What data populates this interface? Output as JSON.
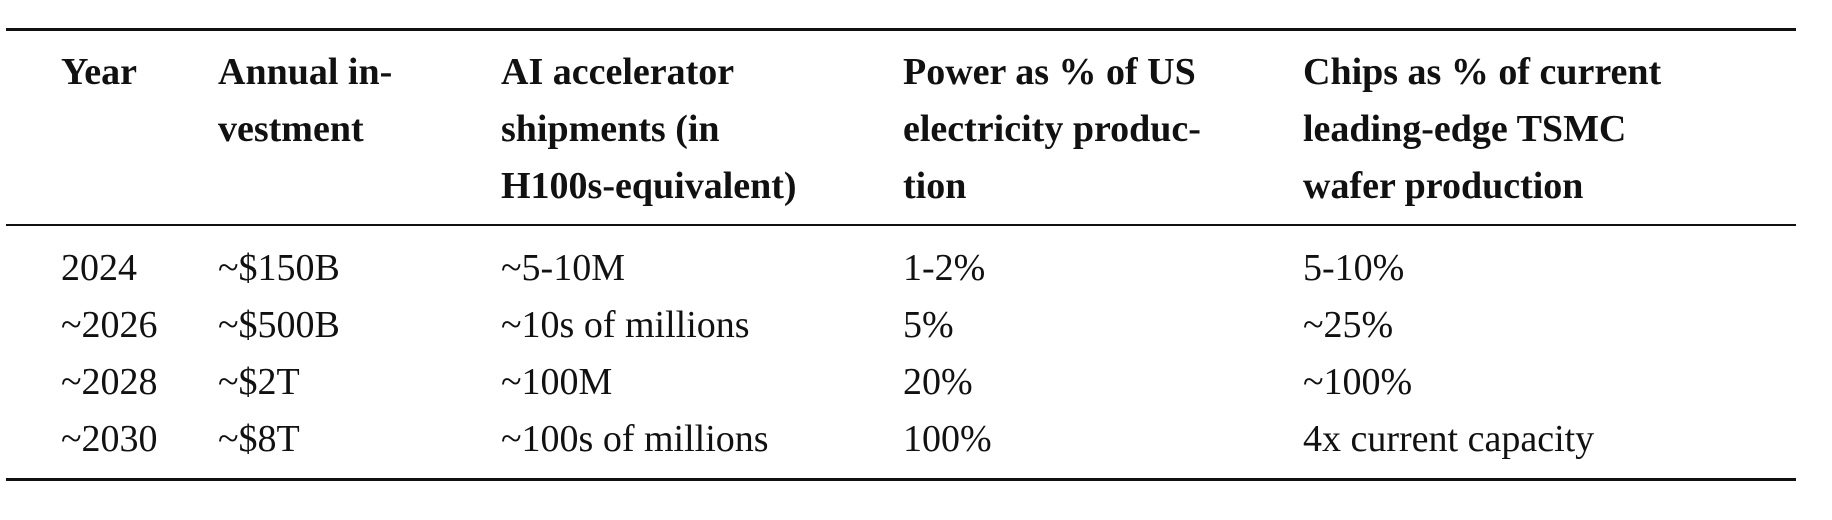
{
  "table": {
    "header": [
      [
        "Year"
      ],
      [
        "Annual in-",
        "vestment"
      ],
      [
        "AI accelerator",
        "shipments (in",
        "H100s-equivalent)"
      ],
      [
        "Power as % of US",
        "electricity produc-",
        "tion"
      ],
      [
        "Chips as % of current",
        "leading-edge TSMC",
        "wafer production"
      ]
    ],
    "rows": [
      [
        "2024",
        "~$150B",
        "~5-10M",
        "1-2%",
        "5-10%"
      ],
      [
        "~2026",
        "~$500B",
        "~10s of millions",
        "5%",
        "~25%"
      ],
      [
        "~2028",
        "~$2T",
        "~100M",
        "20%",
        "~100%"
      ],
      [
        "~2030",
        "~$8T",
        "~100s of millions",
        "100%",
        "4x current capacity"
      ]
    ]
  }
}
